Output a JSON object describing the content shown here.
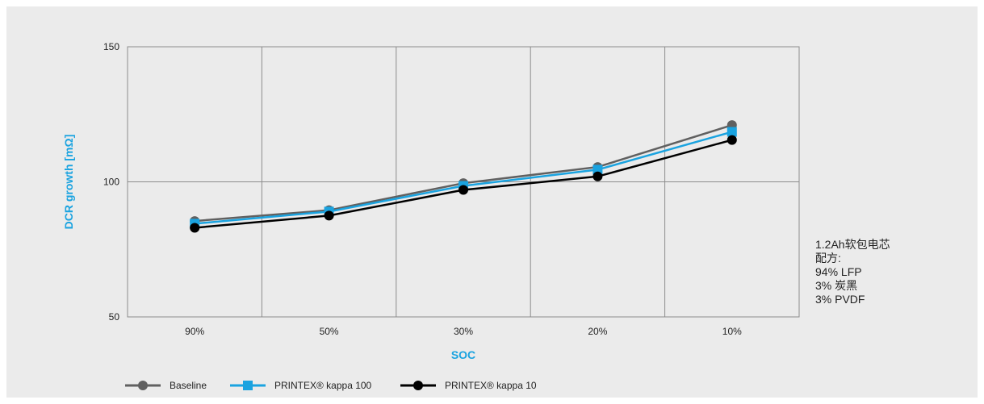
{
  "chart_data": {
    "type": "line",
    "categories": [
      "90%",
      "50%",
      "30%",
      "20%",
      "10%"
    ],
    "xlabel": "SOC",
    "ylabel": "DCR growth [mΩ]",
    "ylim": [
      50,
      150
    ],
    "yticks": [
      50,
      100,
      150
    ],
    "grid": true,
    "legend_position": "bottom-left",
    "series": [
      {
        "name": "Baseline",
        "color": "#606060",
        "marker": "circle",
        "values": [
          85.5,
          89.5,
          99.5,
          105.5,
          121
        ]
      },
      {
        "name": "PRINTEX® kappa 100",
        "color": "#1aa3e0",
        "marker": "square",
        "values": [
          84.5,
          89,
          98.5,
          104.5,
          118.5
        ]
      },
      {
        "name": "PRINTEX® kappa 10",
        "color": "#000000",
        "marker": "circle",
        "values": [
          83,
          87.5,
          97,
          102,
          115.5
        ]
      }
    ]
  },
  "note": {
    "lines": [
      "1.2Ah软包电芯",
      "配方:",
      "94% LFP",
      "3% 炭黑",
      "3% PVDF"
    ]
  }
}
